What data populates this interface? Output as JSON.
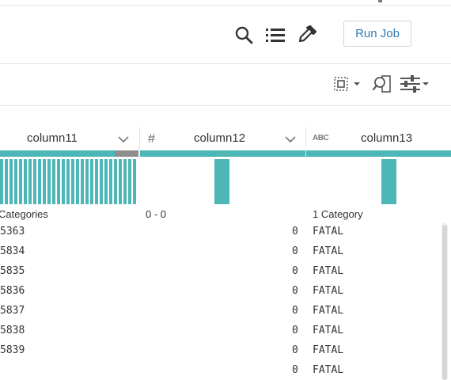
{
  "header": {
    "run_job_label": "Run Job",
    "icons": [
      "search-icon",
      "list-icon",
      "eyedropper-icon"
    ]
  },
  "toolbar": {
    "icons": [
      "column-select-icon",
      "column-search-icon",
      "filter-settings-icon"
    ]
  },
  "colors": {
    "accent": "#4db6b6",
    "bar_gray": "#8e8e8e",
    "link_blue": "#2d7bb6"
  },
  "columns": [
    {
      "name": "column11",
      "type_icon": "",
      "summary": "Categories"
    },
    {
      "name": "column12",
      "type_icon": "#",
      "summary": "0 - 0"
    },
    {
      "name": "column13",
      "type_icon": "ABC",
      "summary": "1 Category"
    }
  ],
  "rows": [
    {
      "c11": "5363",
      "c12": "0",
      "c13": "FATAL"
    },
    {
      "c11": "5834",
      "c12": "0",
      "c13": "FATAL"
    },
    {
      "c11": "5835",
      "c12": "0",
      "c13": "FATAL"
    },
    {
      "c11": "5836",
      "c12": "0",
      "c13": "FATAL"
    },
    {
      "c11": "5837",
      "c12": "0",
      "c13": "FATAL"
    },
    {
      "c11": "5838",
      "c12": "0",
      "c13": "FATAL"
    },
    {
      "c11": "5839",
      "c12": "0",
      "c13": "FATAL"
    },
    {
      "c11": "",
      "c12": "0",
      "c13": "FATAL"
    }
  ]
}
